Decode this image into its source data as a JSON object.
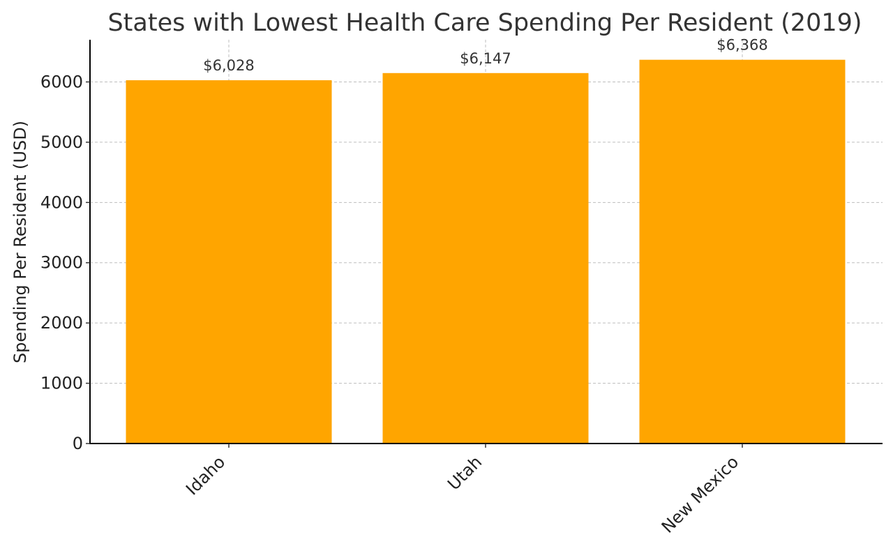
{
  "chart_data": {
    "type": "bar",
    "title": "States with Lowest Health Care Spending Per Resident (2019)",
    "xlabel": "",
    "ylabel": "Spending Per Resident (USD)",
    "categories": [
      "Idaho",
      "Utah",
      "New Mexico"
    ],
    "values": [
      6028,
      6147,
      6368
    ],
    "data_labels": [
      "$6,028",
      "$6,147",
      "$6,368"
    ],
    "yticks": [
      0,
      1000,
      2000,
      3000,
      4000,
      5000,
      6000
    ],
    "ylim": [
      0,
      6700
    ],
    "bar_color": "#FFA500",
    "grid": true,
    "legend": "none"
  }
}
